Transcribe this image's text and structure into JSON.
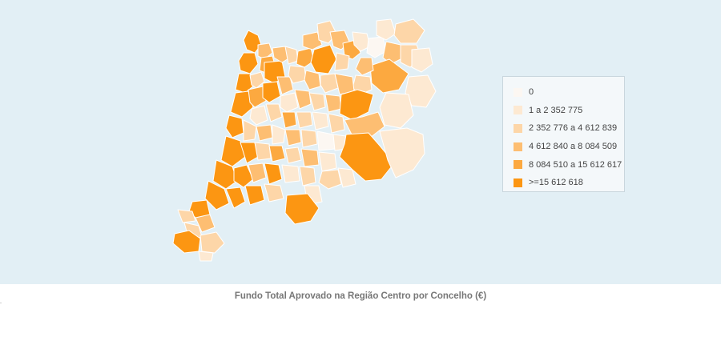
{
  "map": {
    "caption": "Fundo Total Aprovado na Região Centro por Concelho (€)",
    "background_color": "#e2eff5",
    "border_color": "#ffffff",
    "legend": {
      "items": [
        {
          "label": "0",
          "color": "#fcf7f2"
        },
        {
          "label": "1 a 2 352 775",
          "color": "#fde9d2"
        },
        {
          "label": "2 352 776 a 4 612 839",
          "color": "#fdd6a8"
        },
        {
          "label": "4 612 840 a 8 084 509",
          "color": "#fdbe72"
        },
        {
          "label": "8 084 510 a 15 612 617",
          "color": "#fca940"
        },
        {
          "label": ">=15 612 618",
          "color": "#fc9612"
        }
      ]
    }
  }
}
